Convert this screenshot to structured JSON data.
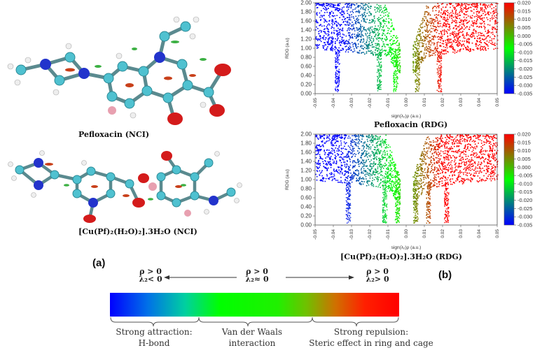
{
  "panel_a": {
    "label": "(a)",
    "top_molecule_caption": "Pefloxacin (NCI)",
    "bottom_molecule_caption": "[Cu(Pf)₂(H₂O)₂].3H₂O (NCI)"
  },
  "panel_b": {
    "label": "(b)",
    "top_plot_caption": "Pefloxacin (RDG)",
    "bottom_plot_caption": "[Cu(Pf)₂(H₂O)₂].3H₂O (RDG)"
  },
  "chart_data": [
    {
      "type": "scatter",
      "title": "Pefloxacin (RDG)",
      "xlabel": "sign(λ₂)ρ (a.u.)",
      "ylabel": "RDG (a.u)",
      "xlim": [
        -0.05,
        0.05
      ],
      "ylim": [
        0.0,
        2.0
      ],
      "xticks": [
        "-0.05",
        "-0.04",
        "-0.03",
        "-0.02",
        "-0.01",
        "0.00",
        "0.01",
        "0.02",
        "0.03",
        "0.04",
        "0.05"
      ],
      "yticks": [
        "0.00",
        "0.20",
        "0.40",
        "0.60",
        "0.80",
        "1.00",
        "1.20",
        "1.40",
        "1.60",
        "1.80",
        "2.00"
      ],
      "colorbar": {
        "range": [
          -0.035,
          0.02
        ],
        "ticks": [
          "0.020",
          "0.015",
          "0.010",
          "0.005",
          "0.000",
          "-0.005",
          "-0.010",
          "-0.015",
          "-0.020",
          "-0.025",
          "-0.030",
          "-0.035"
        ],
        "colors": [
          "#0000ff",
          "#00ff00",
          "#ff0000"
        ]
      },
      "spikes_x": [
        -0.038,
        -0.015,
        -0.006,
        0.006,
        0.018
      ]
    },
    {
      "type": "scatter",
      "title": "[Cu(Pf)₂(H₂O)₂].3H₂O (RDG)",
      "xlabel": "sign(λ₂)ρ (a.u.)",
      "ylabel": "RDG (a.u)",
      "xlim": [
        -0.05,
        0.05
      ],
      "ylim": [
        0.0,
        2.0
      ],
      "xticks": [
        "-0.05",
        "-0.04",
        "-0.03",
        "-0.02",
        "-0.01",
        "0.00",
        "0.01",
        "0.02",
        "0.03",
        "0.04",
        "0.05"
      ],
      "yticks": [
        "0.00",
        "0.20",
        "0.40",
        "0.60",
        "0.80",
        "1.00",
        "1.20",
        "1.40",
        "1.60",
        "1.80",
        "2.00"
      ],
      "colorbar": {
        "range": [
          -0.035,
          0.02
        ],
        "ticks": [
          "0.020",
          "0.015",
          "0.010",
          "0.005",
          "0.000",
          "-0.005",
          "-0.010",
          "-0.015",
          "-0.020",
          "-0.025",
          "-0.030",
          "-0.035"
        ],
        "colors": [
          "#0000ff",
          "#00ff00",
          "#ff0000"
        ]
      },
      "spikes_x": [
        -0.032,
        -0.012,
        -0.005,
        0.005,
        0.012,
        0.022
      ]
    }
  ],
  "legend": {
    "left_sign_rho": "ρ > 0",
    "left_sign_lambda": "λ₂< 0",
    "mid_sign_rho": "ρ > 0",
    "mid_sign_lambda": "λ₂≈ 0",
    "right_sign_rho": "ρ > 0",
    "right_sign_lambda": "λ₂> 0",
    "left_text_1": "Strong attraction:",
    "left_text_2": "H-bond",
    "mid_text_1": "Van der Waals",
    "mid_text_2": "interaction",
    "right_text_1": "Strong repulsion:",
    "right_text_2": "Steric effect in ring and cage",
    "gradient_colors": [
      "#0000ff",
      "#00ff00",
      "#ff0000"
    ]
  }
}
